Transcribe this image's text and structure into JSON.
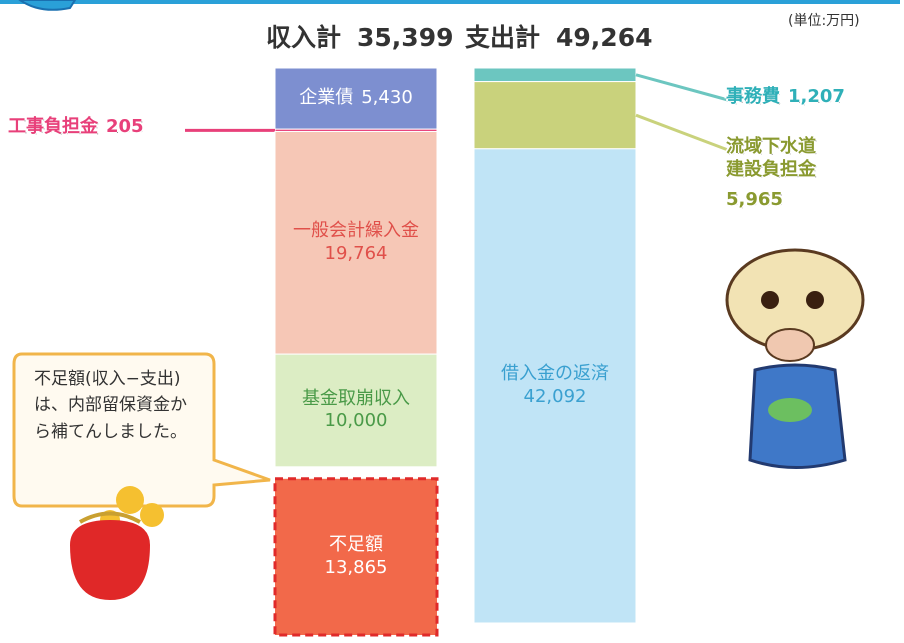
{
  "chart_data": {
    "type": "stacked_bar",
    "unit": "(単位:万円)",
    "note": "不足額(収入−支出)は、内部留保資金から補てんしました。",
    "stacks": [
      {
        "name": "収入計",
        "total": 35399,
        "total_label": "35,399",
        "segments": [
          {
            "name": "企業債",
            "value": 5430,
            "value_label": "5,430",
            "color": "#7d8fd0",
            "label_color": "#ffffff",
            "label_position": "inside"
          },
          {
            "name": "工事負担金",
            "value": 205,
            "value_label": "205",
            "color": "#e8407a",
            "label_color": "#e8407a",
            "label_position": "left"
          },
          {
            "name": "一般会計繰入金",
            "value": 19764,
            "value_label": "19,764",
            "color": "#f6c7b6",
            "label_color": "#e0504a",
            "label_position": "inside"
          },
          {
            "name": "基金取崩収入",
            "value": 10000,
            "value_label": "10,000",
            "color": "#dcedc4",
            "label_color": "#4a9a48",
            "label_position": "inside"
          },
          {
            "name": "不足額",
            "value": 13865,
            "value_label": "13,865",
            "color": "#f2694a",
            "label_color": "#ffffff",
            "label_position": "inside",
            "shortfall": true
          }
        ]
      },
      {
        "name": "支出計",
        "total": 49264,
        "total_label": "49,264",
        "segments": [
          {
            "name": "事務費",
            "value": 1207,
            "value_label": "1,207",
            "color": "#6cc6c0",
            "label_color": "#2fb0b8",
            "label_position": "right"
          },
          {
            "name": "流域下水道建設負担金",
            "value": 5965,
            "value_label": "5,965",
            "color": "#c9d27c",
            "label_color": "#8a9a30",
            "label_position": "right"
          },
          {
            "name": "借入金の返済",
            "value": 42092,
            "value_label": "42,092",
            "color": "#c0e4f6",
            "label_color": "#3aa0d0",
            "label_position": "inside"
          }
        ]
      }
    ]
  }
}
